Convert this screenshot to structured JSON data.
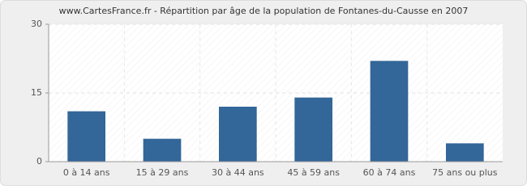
{
  "chart_data": {
    "type": "bar",
    "title": "www.CartesFrance.fr - Répartition par âge de la population de Fontanes-du-Causse en 2007",
    "categories": [
      "0 à 14 ans",
      "15 à 29 ans",
      "30 à 44 ans",
      "45 à 59 ans",
      "60 à 74 ans",
      "75 ans ou plus"
    ],
    "values": [
      11,
      5,
      12,
      14,
      22,
      4
    ],
    "color": "#336699",
    "ylim": [
      0,
      30
    ],
    "yticks": [
      0,
      15,
      30
    ],
    "grid": true
  }
}
